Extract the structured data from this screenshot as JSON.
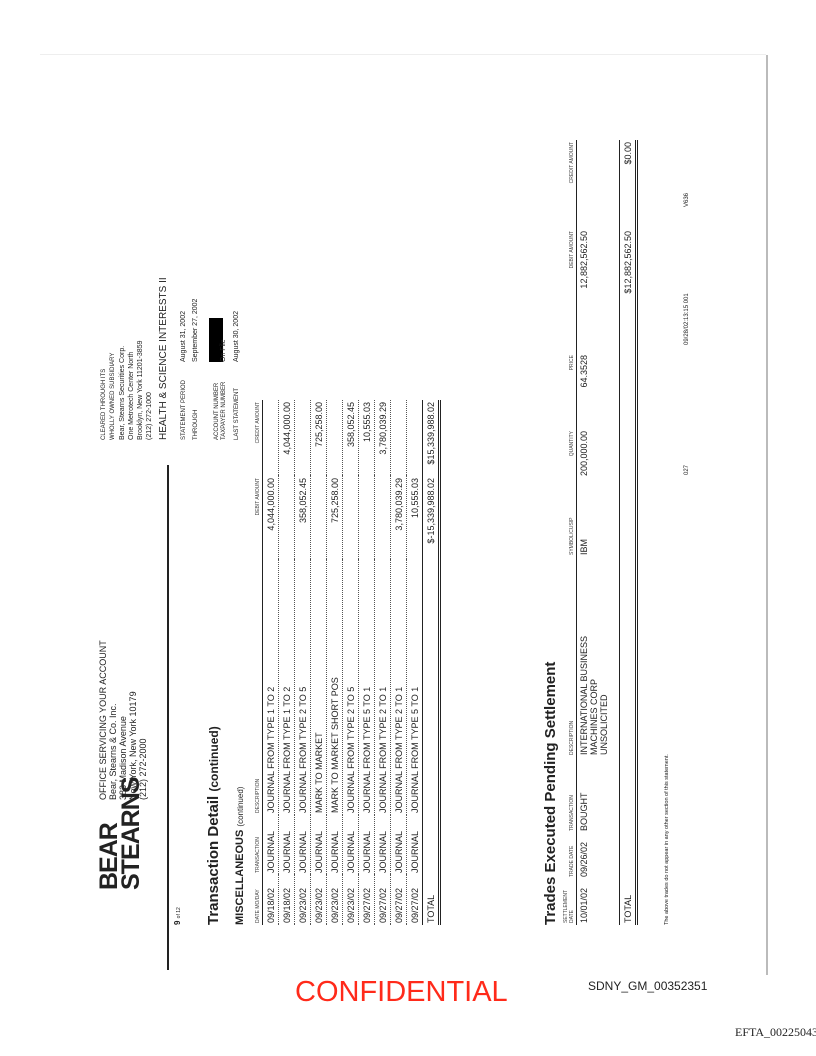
{
  "header": {
    "logo": [
      "BEAR",
      "STEARNS"
    ],
    "office": [
      "OFFICE SERVICING YOUR ACCOUNT",
      "Bear, Stearns & Co. Inc.",
      "383 Madison Avenue",
      "New York, New York  10179",
      "(212) 272-2000"
    ],
    "clearing": [
      "CLEARED THROUGH ITS",
      "WHOLLY OWNED SUBSIDIARY",
      "Bear, Stearns Securities Corp.",
      "One Metrotech Center North",
      "Brooklyn, New York 11201-3859",
      "(212) 272-1000"
    ],
    "account_name": "HEALTH & SCIENCE INTERESTS II",
    "fields": [
      {
        "label": "STATEMENT PERIOD",
        "value": "August 31, 2002"
      },
      {
        "label": "THROUGH",
        "value": "September 27, 2002"
      },
      {
        "label": "ACCOUNT NUMBER",
        "value": ""
      },
      {
        "label": "TAXPAYER NUMBER",
        "value": "On File"
      },
      {
        "label": "LAST STATEMENT",
        "value": "August 30, 2002"
      }
    ],
    "page": "9",
    "page_of": "of 12"
  },
  "transaction_detail": {
    "title": "Transaction Detail",
    "title_suffix": "(continued)",
    "section": "MISCELLANEOUS",
    "section_suffix": "(continued)",
    "columns": [
      "DATE MO/DAY",
      "TRANSACTION",
      "DESCRIPTION",
      "DEBIT AMOUNT",
      "CREDIT AMOUNT"
    ],
    "rows": [
      [
        "09/18/02",
        "JOURNAL",
        "JOURNAL FROM TYPE 1 TO 2",
        "4,044,000.00",
        ""
      ],
      [
        "09/18/02",
        "JOURNAL",
        "JOURNAL FROM TYPE 1 TO 2",
        "",
        "4,044,000.00"
      ],
      [
        "09/23/02",
        "JOURNAL",
        "JOURNAL FROM TYPE 2 TO 5",
        "358,052.45",
        ""
      ],
      [
        "09/23/02",
        "JOURNAL",
        "MARK TO MARKET",
        "",
        "725,258.00"
      ],
      [
        "09/23/02",
        "JOURNAL",
        "MARK TO MARKET  SHORT POS",
        "725,258.00",
        ""
      ],
      [
        "09/23/02",
        "JOURNAL",
        "JOURNAL FROM TYPE 2 TO 5",
        "",
        "358,052.45"
      ],
      [
        "09/27/02",
        "JOURNAL",
        "JOURNAL FROM TYPE 5 TO 1",
        "",
        "10,555.03"
      ],
      [
        "09/27/02",
        "JOURNAL",
        "JOURNAL FROM TYPE 2 TO 1",
        "",
        "3,780,039.29"
      ],
      [
        "09/27/02",
        "JOURNAL",
        "JOURNAL FROM TYPE 2 TO 1",
        "3,780,039.29",
        ""
      ],
      [
        "09/27/02",
        "JOURNAL",
        "JOURNAL FROM TYPE 5 TO 1",
        "10,555.03",
        ""
      ]
    ],
    "total": {
      "label": "TOTAL",
      "debit": "$-15,339,988.02",
      "credit": "$15,339,988.02"
    }
  },
  "trades_pending": {
    "title": "Trades Executed Pending Settlement",
    "columns": [
      "SETTLEMENT DATE",
      "TRADE DATE",
      "TRANSACTION",
      "DESCRIPTION",
      "SYMBOL/CUSIP",
      "QUANTITY",
      "PRICE",
      "DEBIT AMOUNT",
      "CREDIT AMOUNT"
    ],
    "rows": [
      {
        "settlement": "10/01/02",
        "trade": "09/26/02",
        "transaction": "BOUGHT",
        "description": [
          "INTERNATIONAL  BUSINESS",
          "MACHINES CORP",
          "UNSOLICITED"
        ],
        "symbol": "IBM",
        "quantity": "200,000.00",
        "price": "64.3528",
        "debit": "12,882,562.50",
        "credit": ""
      }
    ],
    "total": {
      "label": "TOTAL",
      "debit": "$12,882,562.50",
      "credit": "$0.00"
    },
    "footnote": "The above trades do not appear in any other section of this statement."
  },
  "footer": {
    "code1": "027",
    "timestamp": "09/28/02:13:15 001",
    "code2": "V636"
  },
  "stamps": {
    "confidential": "CONFIDENTIAL",
    "bates": "SDNY_GM_00352351",
    "efta": "EFTA_00225043"
  },
  "colors": {
    "confidential": "#ff2a1a",
    "redaction": "#000000"
  }
}
